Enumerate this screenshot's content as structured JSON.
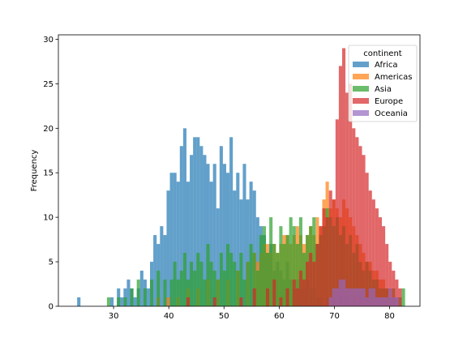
{
  "chart_data": {
    "type": "histogram",
    "xlabel": "",
    "ylabel": "Frequency",
    "xlim": [
      20,
      85.5
    ],
    "ylim": [
      0,
      30.5
    ],
    "x_ticks": [
      30,
      40,
      50,
      60,
      70,
      80
    ],
    "y_ticks": [
      0,
      5,
      10,
      15,
      20,
      25,
      30
    ],
    "bin_width": 0.6,
    "alpha": 0.7,
    "legend": {
      "title": "continent",
      "position": "upper right"
    },
    "series": [
      {
        "name": "Africa",
        "color": "#1f77b4",
        "bins": [
          [
            23.4,
            1
          ],
          [
            29.4,
            1
          ],
          [
            30.6,
            2
          ],
          [
            31.2,
            1
          ],
          [
            31.8,
            2
          ],
          [
            32.4,
            3
          ],
          [
            33.0,
            2
          ],
          [
            33.6,
            1
          ],
          [
            34.2,
            2
          ],
          [
            34.8,
            4
          ],
          [
            35.4,
            3
          ],
          [
            36.0,
            2
          ],
          [
            36.6,
            5
          ],
          [
            37.2,
            8
          ],
          [
            37.8,
            7
          ],
          [
            38.4,
            9
          ],
          [
            39.0,
            8
          ],
          [
            39.6,
            13
          ],
          [
            40.2,
            15
          ],
          [
            40.8,
            15
          ],
          [
            41.4,
            14
          ],
          [
            42.0,
            18
          ],
          [
            42.6,
            20
          ],
          [
            43.2,
            14
          ],
          [
            43.8,
            17
          ],
          [
            44.4,
            19
          ],
          [
            45.0,
            19
          ],
          [
            45.6,
            18
          ],
          [
            46.2,
            17
          ],
          [
            46.8,
            16
          ],
          [
            47.4,
            14
          ],
          [
            48.0,
            16
          ],
          [
            48.6,
            11
          ],
          [
            49.2,
            18
          ],
          [
            49.8,
            16
          ],
          [
            50.4,
            15
          ],
          [
            51.0,
            19
          ],
          [
            51.6,
            13
          ],
          [
            52.2,
            15
          ],
          [
            52.8,
            12
          ],
          [
            53.4,
            16
          ],
          [
            54.0,
            12
          ],
          [
            54.6,
            14
          ],
          [
            55.2,
            13
          ],
          [
            55.8,
            10
          ],
          [
            56.4,
            9
          ],
          [
            57.0,
            8
          ],
          [
            57.6,
            6
          ],
          [
            58.2,
            7
          ],
          [
            58.8,
            4
          ],
          [
            59.4,
            5
          ],
          [
            60.0,
            4
          ],
          [
            60.6,
            3
          ],
          [
            61.2,
            5
          ],
          [
            61.8,
            3
          ],
          [
            62.4,
            2
          ],
          [
            63.0,
            3
          ],
          [
            63.6,
            2
          ],
          [
            64.2,
            2
          ],
          [
            64.8,
            3
          ],
          [
            65.4,
            2
          ],
          [
            66.0,
            2
          ],
          [
            66.6,
            1
          ],
          [
            67.2,
            1
          ],
          [
            68.4,
            1
          ],
          [
            69.6,
            1
          ],
          [
            70.8,
            1
          ],
          [
            72.0,
            1
          ],
          [
            73.2,
            1
          ],
          [
            74.4,
            1
          ],
          [
            75.6,
            1
          ]
        ]
      },
      {
        "name": "Americas",
        "color": "#ff7f0e",
        "bins": [
          [
            37.8,
            1
          ],
          [
            39.6,
            1
          ],
          [
            41.4,
            1
          ],
          [
            43.2,
            2
          ],
          [
            45.0,
            2
          ],
          [
            46.8,
            3
          ],
          [
            48.6,
            3
          ],
          [
            50.4,
            3
          ],
          [
            52.2,
            4
          ],
          [
            54.0,
            5
          ],
          [
            55.2,
            6
          ],
          [
            55.8,
            5
          ],
          [
            56.4,
            6
          ],
          [
            57.0,
            7
          ],
          [
            57.6,
            7
          ],
          [
            58.2,
            6
          ],
          [
            58.8,
            7
          ],
          [
            59.4,
            6
          ],
          [
            60.0,
            7
          ],
          [
            60.6,
            8
          ],
          [
            61.2,
            8
          ],
          [
            61.8,
            7
          ],
          [
            62.4,
            8
          ],
          [
            63.0,
            9
          ],
          [
            63.6,
            8
          ],
          [
            64.2,
            7
          ],
          [
            64.8,
            8
          ],
          [
            65.4,
            9
          ],
          [
            66.0,
            8
          ],
          [
            66.6,
            10
          ],
          [
            67.2,
            9
          ],
          [
            67.8,
            12
          ],
          [
            68.4,
            14
          ],
          [
            69.0,
            11
          ],
          [
            69.6,
            12
          ],
          [
            70.2,
            11
          ],
          [
            70.8,
            10
          ],
          [
            71.4,
            12
          ],
          [
            72.0,
            11
          ],
          [
            72.6,
            10
          ],
          [
            73.2,
            9
          ],
          [
            73.8,
            8
          ],
          [
            74.4,
            7
          ],
          [
            75.0,
            6
          ],
          [
            75.6,
            5
          ],
          [
            76.2,
            5
          ],
          [
            76.8,
            4
          ],
          [
            77.4,
            4
          ],
          [
            78.0,
            3
          ],
          [
            78.6,
            3
          ],
          [
            79.2,
            2
          ],
          [
            79.8,
            2
          ],
          [
            80.4,
            1
          ]
        ]
      },
      {
        "name": "Asia",
        "color": "#2ca02c",
        "bins": [
          [
            28.8,
            1
          ],
          [
            30.6,
            1
          ],
          [
            31.8,
            1
          ],
          [
            33.0,
            2
          ],
          [
            34.2,
            3
          ],
          [
            35.4,
            2
          ],
          [
            36.6,
            3
          ],
          [
            37.8,
            4
          ],
          [
            39.0,
            3
          ],
          [
            40.2,
            3
          ],
          [
            40.8,
            5
          ],
          [
            41.4,
            3
          ],
          [
            42.0,
            4
          ],
          [
            42.6,
            6
          ],
          [
            43.2,
            3
          ],
          [
            43.8,
            5
          ],
          [
            44.4,
            4
          ],
          [
            45.0,
            6
          ],
          [
            45.6,
            5
          ],
          [
            46.2,
            3
          ],
          [
            46.8,
            7
          ],
          [
            47.4,
            5
          ],
          [
            48.0,
            4
          ],
          [
            48.6,
            3
          ],
          [
            49.2,
            6
          ],
          [
            49.8,
            4
          ],
          [
            50.4,
            7
          ],
          [
            51.0,
            6
          ],
          [
            51.6,
            5
          ],
          [
            52.2,
            4
          ],
          [
            52.8,
            6
          ],
          [
            53.4,
            3
          ],
          [
            54.0,
            5
          ],
          [
            54.6,
            7
          ],
          [
            55.2,
            6
          ],
          [
            55.8,
            4
          ],
          [
            56.4,
            8
          ],
          [
            57.0,
            9
          ],
          [
            57.6,
            6
          ],
          [
            58.2,
            10
          ],
          [
            58.8,
            7
          ],
          [
            59.4,
            6
          ],
          [
            60.0,
            9
          ],
          [
            60.6,
            7
          ],
          [
            61.2,
            8
          ],
          [
            61.8,
            10
          ],
          [
            62.4,
            9
          ],
          [
            63.0,
            7
          ],
          [
            63.6,
            10
          ],
          [
            64.2,
            6
          ],
          [
            64.8,
            8
          ],
          [
            65.4,
            9
          ],
          [
            66.0,
            10
          ],
          [
            66.6,
            7
          ],
          [
            67.2,
            8
          ],
          [
            67.8,
            9
          ],
          [
            68.4,
            11
          ],
          [
            69.0,
            10
          ],
          [
            69.6,
            9
          ],
          [
            70.2,
            10
          ],
          [
            70.8,
            8
          ],
          [
            71.4,
            9
          ],
          [
            72.0,
            7
          ],
          [
            72.6,
            8
          ],
          [
            73.2,
            6
          ],
          [
            73.8,
            7
          ],
          [
            74.4,
            5
          ],
          [
            75.0,
            4
          ],
          [
            75.6,
            5
          ],
          [
            76.2,
            4
          ],
          [
            76.8,
            3
          ],
          [
            77.4,
            3
          ],
          [
            78.0,
            2
          ],
          [
            78.6,
            2
          ],
          [
            79.2,
            2
          ],
          [
            79.8,
            1
          ],
          [
            80.4,
            2
          ],
          [
            81.0,
            1
          ],
          [
            81.6,
            1
          ],
          [
            82.2,
            2
          ]
        ]
      },
      {
        "name": "Europe",
        "color": "#d62728",
        "bins": [
          [
            43.2,
            1
          ],
          [
            48.0,
            1
          ],
          [
            52.8,
            1
          ],
          [
            55.2,
            2
          ],
          [
            57.6,
            2
          ],
          [
            58.8,
            3
          ],
          [
            60.0,
            1
          ],
          [
            61.2,
            2
          ],
          [
            62.4,
            3
          ],
          [
            63.0,
            2
          ],
          [
            63.6,
            4
          ],
          [
            64.2,
            3
          ],
          [
            64.8,
            5
          ],
          [
            65.4,
            6
          ],
          [
            66.0,
            5
          ],
          [
            66.6,
            7
          ],
          [
            67.2,
            9
          ],
          [
            67.8,
            11
          ],
          [
            68.4,
            10
          ],
          [
            69.0,
            13
          ],
          [
            69.6,
            12
          ],
          [
            70.2,
            21
          ],
          [
            70.8,
            27
          ],
          [
            71.4,
            29
          ],
          [
            72.0,
            24
          ],
          [
            72.6,
            25
          ],
          [
            73.2,
            20
          ],
          [
            73.8,
            19
          ],
          [
            74.4,
            18
          ],
          [
            75.0,
            17
          ],
          [
            75.6,
            15
          ],
          [
            76.2,
            13
          ],
          [
            76.8,
            12
          ],
          [
            77.4,
            11
          ],
          [
            78.0,
            10
          ],
          [
            78.6,
            9
          ],
          [
            79.2,
            7
          ],
          [
            79.8,
            5
          ],
          [
            80.4,
            4
          ],
          [
            81.0,
            3
          ],
          [
            81.6,
            2
          ]
        ]
      },
      {
        "name": "Oceania",
        "color": "#9467bd",
        "bins": [
          [
            69.0,
            1
          ],
          [
            69.6,
            2
          ],
          [
            70.2,
            2
          ],
          [
            70.8,
            3
          ],
          [
            71.4,
            3
          ],
          [
            72.0,
            2
          ],
          [
            72.6,
            2
          ],
          [
            73.2,
            2
          ],
          [
            73.8,
            2
          ],
          [
            74.4,
            2
          ],
          [
            75.0,
            2
          ],
          [
            75.6,
            1
          ],
          [
            76.2,
            2
          ],
          [
            76.8,
            2
          ],
          [
            77.4,
            1
          ],
          [
            78.0,
            1
          ],
          [
            78.6,
            1
          ],
          [
            79.2,
            1
          ],
          [
            79.8,
            2
          ],
          [
            80.4,
            1
          ],
          [
            81.0,
            1
          ]
        ]
      }
    ]
  }
}
